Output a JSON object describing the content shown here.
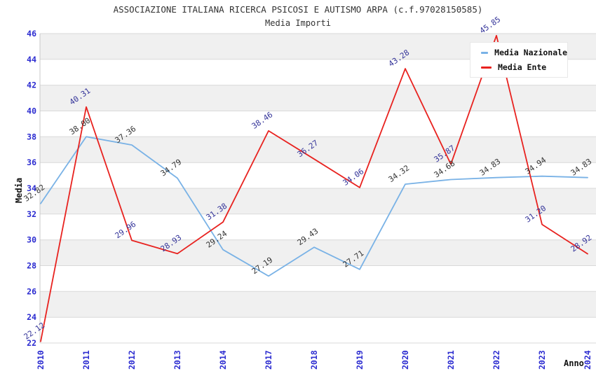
{
  "title": "ASSOCIAZIONE ITALIANA RICERCA PSICOSI E AUTISMO ARPA (c.f.97028150585)",
  "subtitle": "Media Importi",
  "chart_data": {
    "type": "line",
    "x": [
      "2010",
      "2011",
      "2012",
      "2013",
      "2014",
      "2017",
      "2018",
      "2019",
      "2020",
      "2021",
      "2022",
      "2023",
      "2024"
    ],
    "series": [
      {
        "name": "Media Nazionale",
        "color": "#79b2e6",
        "label_color": "#333333",
        "values": [
          32.82,
          38.0,
          37.36,
          34.79,
          29.24,
          27.19,
          29.43,
          27.71,
          34.32,
          34.68,
          34.83,
          34.94,
          34.83
        ],
        "labels": [
          "32.82",
          "38.00",
          "37.36",
          "34.79",
          "29.24",
          "27.19",
          "29.43",
          "27.71",
          "34.32",
          "34.68",
          "34.83",
          "34.94",
          "34.83"
        ]
      },
      {
        "name": "Media Ente",
        "color": "#e8221f",
        "label_color": "#333399",
        "values": [
          22.12,
          40.31,
          29.96,
          28.93,
          31.38,
          38.46,
          36.27,
          34.06,
          43.28,
          35.87,
          45.85,
          31.2,
          28.92
        ],
        "labels": [
          "22.12",
          "40.31",
          "29.96",
          "28.93",
          "31.38",
          "38.46",
          "36.27",
          "34.06",
          "43.28",
          "35.87",
          "45.85",
          "31.20",
          "28.92"
        ]
      }
    ],
    "xlabel": "Anno",
    "ylabel": "Media",
    "ylim": [
      22,
      46
    ],
    "yticks": [
      22,
      24,
      26,
      28,
      30,
      32,
      34,
      36,
      38,
      40,
      42,
      44,
      46
    ],
    "legend_position": "top-right",
    "grid": "horizontal-bands"
  },
  "colors": {
    "background": "#ffffff",
    "band": "#f0f0f0",
    "grid": "#d9d9d9",
    "axis": "#c9c9c9",
    "tick_label": "#2b2bd0",
    "title_text": "#333333"
  }
}
